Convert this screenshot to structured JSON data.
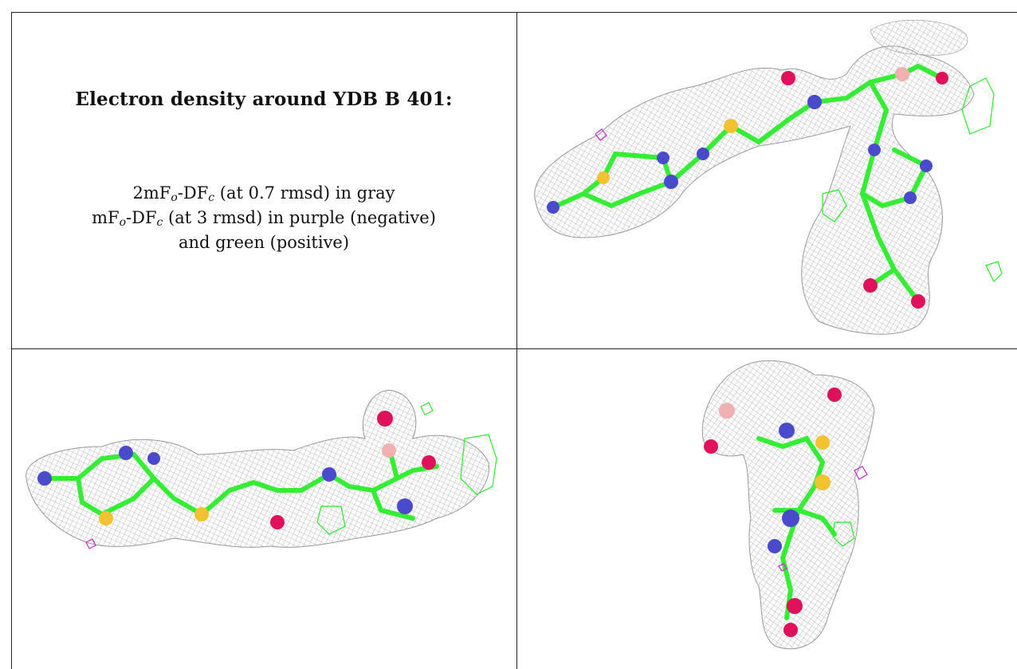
{
  "caption": {
    "title": "Electron density around YDB B 401:",
    "line1_prefix": "2mF",
    "line1_sub1": "o",
    "line1_mid": "-DF",
    "line1_sub2": "c",
    "line1_suffix": " (at 0.7 rmsd) in gray",
    "line2_prefix": "mF",
    "line2_sub1": "o",
    "line2_mid": "-DF",
    "line2_sub2": "c",
    "line2_suffix": " (at 3 rmsd) in purple (negative)",
    "line3": "and green (positive)"
  },
  "colors": {
    "mesh_gray": "#b8b8b8",
    "bond_green": "#33ee33",
    "atom_nitrogen": "#4a4acc",
    "atom_oxygen": "#e0105a",
    "atom_sulfur": "#f2c230",
    "atom_light": "#f0b0b0",
    "density_positive": "#22ee22",
    "density_negative": "#cc22cc"
  },
  "panels": [
    {
      "id": "view-1",
      "content": "molecule-render-top-right"
    },
    {
      "id": "view-2",
      "content": "molecule-render-bottom-left"
    },
    {
      "id": "view-3",
      "content": "molecule-render-bottom-right"
    }
  ]
}
